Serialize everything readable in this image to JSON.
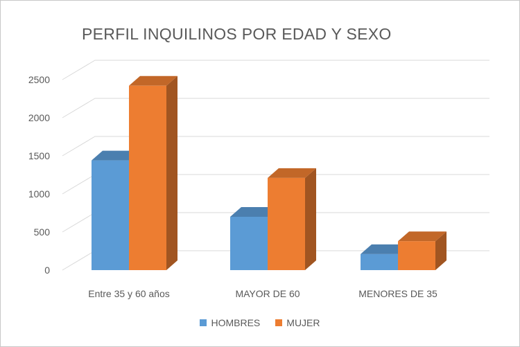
{
  "chart_data": {
    "type": "bar",
    "title": "PERFIL INQUILINOS POR EDAD Y SEXO",
    "categories": [
      "Entre 35 y 60 años",
      "MAYOR DE 60",
      "MENORES DE 35"
    ],
    "series": [
      {
        "name": "HOMBRES",
        "values": [
          1440,
          700,
          210
        ],
        "color": "#5B9BD5",
        "top_color": "#41719C"
      },
      {
        "name": "MUJER",
        "values": [
          2420,
          1210,
          380
        ],
        "color": "#ED7D31",
        "top_color": "#C55A11",
        "side_color": "#A0522D"
      }
    ],
    "ylim": [
      0,
      2500
    ],
    "yticks": [
      0,
      500,
      1000,
      1500,
      2000,
      2500
    ],
    "grid": true,
    "legend_position": "bottom"
  }
}
